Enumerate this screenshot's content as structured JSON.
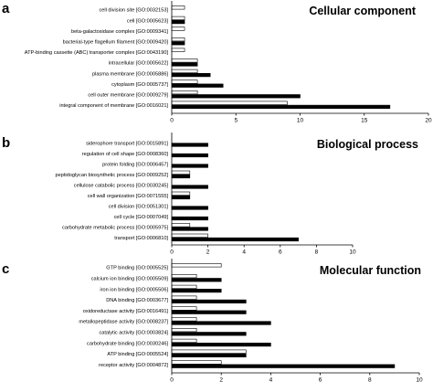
{
  "chart_data": [
    {
      "type": "bar",
      "orientation": "horizontal",
      "panel": "a",
      "title": "Cellular component",
      "xlim": [
        0,
        20
      ],
      "xticks": [
        "0",
        "5",
        "10",
        "15",
        "20"
      ],
      "categories": [
        "cell division site [GO:0032153]",
        "cell [GO:0005623]",
        "beta-galactosidase complex [GO:0009341]",
        "bacterial-type flagellum filament [GO:0009420]",
        "ATP-binding cassette (ABC) transporter complex [GO:0043190]",
        "intracellular [GO:0005622]",
        "plasma membrane [GO:0005886]",
        "cytoplasm [GO:0005737]",
        "cell outer membrane [GO:0009279]",
        "integral component of membrane [GO:0016021]"
      ],
      "series": [
        {
          "color": "#ffffff",
          "values": [
            1,
            1,
            1,
            1,
            1,
            2,
            2,
            2,
            2,
            9
          ]
        },
        {
          "color": "#000000",
          "values": [
            0,
            1,
            0,
            1,
            0,
            2,
            3,
            4,
            10,
            17
          ]
        }
      ],
      "grid": false
    },
    {
      "type": "bar",
      "orientation": "horizontal",
      "panel": "b",
      "title": "Biological process",
      "xlim": [
        0,
        10
      ],
      "xticks": [
        "0",
        "2",
        "4",
        "6",
        "8",
        "10"
      ],
      "categories": [
        "siderophore transport [GO:0015891]",
        "regulation of cell shape [GO:0008360]",
        "protein folding [GO:0006457]",
        "peptidoglycan biosynthetic process [GO:0009252]",
        "cellulose catabolic process [GO:0030245]",
        "cell wall organization [GO:0071555]",
        "cell division [GO:0051301]",
        "cell cycle [GO:0007049]",
        "carbohydrate metabolic process [GO:0005975]",
        "transport [GO:0006810]"
      ],
      "series": [
        {
          "color": "#ffffff",
          "values": [
            0,
            0,
            0,
            1,
            0,
            1,
            0,
            0,
            1,
            2
          ]
        },
        {
          "color": "#000000",
          "values": [
            2,
            2,
            2,
            1,
            2,
            1,
            2,
            2,
            2,
            7
          ]
        }
      ],
      "grid": false
    },
    {
      "type": "bar",
      "orientation": "horizontal",
      "panel": "c",
      "title": "Molecular function",
      "xlim": [
        0,
        10
      ],
      "xticks": [
        "0",
        "2",
        "4",
        "6",
        "8",
        "10"
      ],
      "categories": [
        "GTP binding [GO:0005525]",
        "calcium ion binding [GO:0005509]",
        "iron ion binding [GO:0005506]",
        "DNA binding [GO:0003677]",
        "oxidoreductase activity [GO:0016491]",
        "metallopeptidase activity [GO:0008237]",
        "catalytic activity [GO:0003824]",
        "carbohydrate binding [GO:0030246]",
        "ATP binding [GO:0005524]",
        "receptor activity [GO:0004872]"
      ],
      "series": [
        {
          "color": "#ffffff",
          "values": [
            2,
            1,
            1,
            1,
            1,
            1,
            1,
            1,
            3,
            2
          ]
        },
        {
          "color": "#000000",
          "values": [
            0,
            2,
            2,
            3,
            3,
            4,
            3,
            4,
            3,
            9
          ]
        }
      ],
      "grid": false
    }
  ]
}
